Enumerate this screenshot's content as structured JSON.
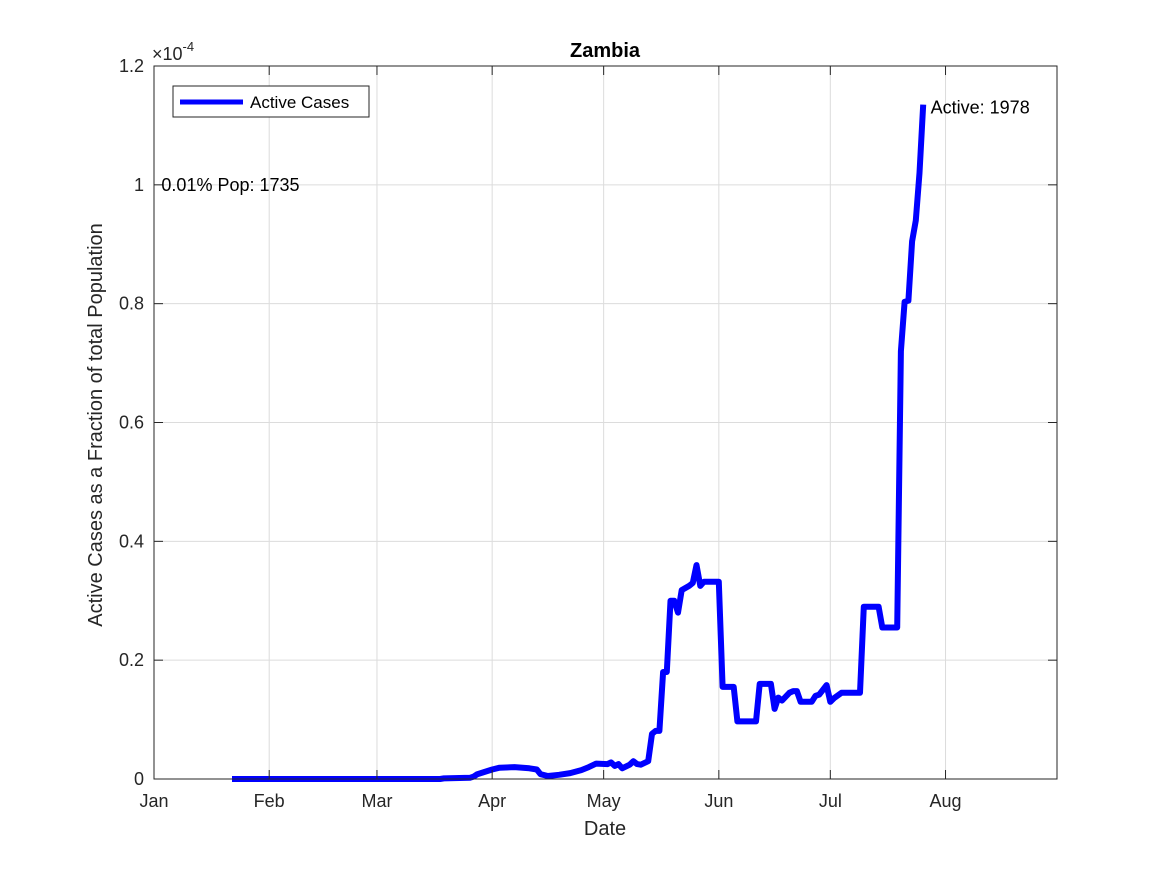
{
  "chart_data": {
    "type": "line",
    "title": "Zambia",
    "xlabel": "Date",
    "ylabel": "Active Cases as a Fraction of total Population",
    "y_exponent_label": "×10",
    "y_exponent_power": "-4",
    "x_axis": {
      "type": "date",
      "range": [
        "2020-01-01",
        "2020-08-31"
      ],
      "ticks": [
        {
          "date": "2020-01-01",
          "label": "Jan"
        },
        {
          "date": "2020-02-01",
          "label": "Feb"
        },
        {
          "date": "2020-03-01",
          "label": "Mar"
        },
        {
          "date": "2020-04-01",
          "label": "Apr"
        },
        {
          "date": "2020-05-01",
          "label": "May"
        },
        {
          "date": "2020-06-01",
          "label": "Jun"
        },
        {
          "date": "2020-07-01",
          "label": "Jul"
        },
        {
          "date": "2020-08-01",
          "label": "Aug"
        }
      ]
    },
    "y_axis": {
      "range": [
        0,
        1.2
      ],
      "ticks": [
        {
          "value": 0,
          "label": "0"
        },
        {
          "value": 0.2,
          "label": "0.2"
        },
        {
          "value": 0.4,
          "label": "0.4"
        },
        {
          "value": 0.6,
          "label": "0.6"
        },
        {
          "value": 0.8,
          "label": "0.8"
        },
        {
          "value": 1.0,
          "label": "1"
        },
        {
          "value": 1.2,
          "label": "1.2"
        }
      ]
    },
    "grid": true,
    "legend": {
      "placement": "top-left",
      "entries": [
        "Active Cases"
      ]
    },
    "series": [
      {
        "name": "Active Cases",
        "color": "#0000ff",
        "points": [
          [
            "2020-01-22",
            0
          ],
          [
            "2020-03-18",
            0
          ],
          [
            "2020-03-19",
            0.001
          ],
          [
            "2020-03-26",
            0.002
          ],
          [
            "2020-03-27",
            0.004
          ],
          [
            "2020-03-28",
            0.008
          ],
          [
            "2020-03-30",
            0.012
          ],
          [
            "2020-04-01",
            0.016
          ],
          [
            "2020-04-03",
            0.019
          ],
          [
            "2020-04-07",
            0.02
          ],
          [
            "2020-04-11",
            0.018
          ],
          [
            "2020-04-13",
            0.016
          ],
          [
            "2020-04-14",
            0.008
          ],
          [
            "2020-04-16",
            0.005
          ],
          [
            "2020-04-19",
            0.007
          ],
          [
            "2020-04-22",
            0.01
          ],
          [
            "2020-04-25",
            0.015
          ],
          [
            "2020-04-27",
            0.02
          ],
          [
            "2020-04-29",
            0.026
          ],
          [
            "2020-05-02",
            0.025
          ],
          [
            "2020-05-03",
            0.028
          ],
          [
            "2020-05-04",
            0.022
          ],
          [
            "2020-05-05",
            0.025
          ],
          [
            "2020-05-06",
            0.018
          ],
          [
            "2020-05-08",
            0.024
          ],
          [
            "2020-05-09",
            0.03
          ],
          [
            "2020-05-10",
            0.025
          ],
          [
            "2020-05-11",
            0.024
          ],
          [
            "2020-05-13",
            0.03
          ],
          [
            "2020-05-14",
            0.076
          ],
          [
            "2020-05-15",
            0.081
          ],
          [
            "2020-05-16",
            0.081
          ],
          [
            "2020-05-17",
            0.18
          ],
          [
            "2020-05-18",
            0.18
          ],
          [
            "2020-05-19",
            0.3
          ],
          [
            "2020-05-20",
            0.3
          ],
          [
            "2020-05-21",
            0.28
          ],
          [
            "2020-05-22",
            0.318
          ],
          [
            "2020-05-24",
            0.325
          ],
          [
            "2020-05-25",
            0.33
          ],
          [
            "2020-05-26",
            0.36
          ],
          [
            "2020-05-27",
            0.325
          ],
          [
            "2020-05-28",
            0.332
          ],
          [
            "2020-06-01",
            0.332
          ],
          [
            "2020-06-02",
            0.155
          ],
          [
            "2020-06-05",
            0.155
          ],
          [
            "2020-06-06",
            0.097
          ],
          [
            "2020-06-11",
            0.097
          ],
          [
            "2020-06-12",
            0.16
          ],
          [
            "2020-06-15",
            0.16
          ],
          [
            "2020-06-16",
            0.118
          ],
          [
            "2020-06-17",
            0.137
          ],
          [
            "2020-06-18",
            0.132
          ],
          [
            "2020-06-20",
            0.145
          ],
          [
            "2020-06-21",
            0.148
          ],
          [
            "2020-06-22",
            0.148
          ],
          [
            "2020-06-23",
            0.13
          ],
          [
            "2020-06-26",
            0.13
          ],
          [
            "2020-06-27",
            0.14
          ],
          [
            "2020-06-28",
            0.142
          ],
          [
            "2020-06-29",
            0.15
          ],
          [
            "2020-06-30",
            0.158
          ],
          [
            "2020-07-01",
            0.13
          ],
          [
            "2020-07-02",
            0.136
          ],
          [
            "2020-07-04",
            0.145
          ],
          [
            "2020-07-09",
            0.145
          ],
          [
            "2020-07-10",
            0.29
          ],
          [
            "2020-07-14",
            0.29
          ],
          [
            "2020-07-15",
            0.255
          ],
          [
            "2020-07-19",
            0.255
          ],
          [
            "2020-07-20",
            0.72
          ],
          [
            "2020-07-21",
            0.803
          ],
          [
            "2020-07-22",
            0.805
          ],
          [
            "2020-07-23",
            0.905
          ],
          [
            "2020-07-24",
            0.94
          ],
          [
            "2020-07-25",
            1.02
          ],
          [
            "2020-07-26",
            1.135
          ]
        ]
      }
    ],
    "annotations": [
      {
        "text": "0.01% Pop: 1735",
        "date": "2020-01-03",
        "value": 1.0
      },
      {
        "text": "Active: 1978",
        "date": "2020-07-28",
        "value": 1.13
      }
    ]
  }
}
